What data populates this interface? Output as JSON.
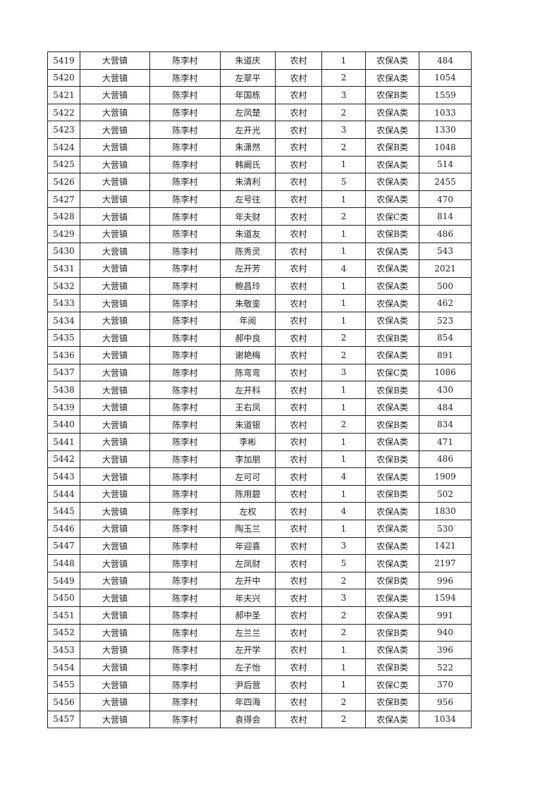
{
  "table": {
    "rows": [
      [
        "5419",
        "大营镇",
        "陈李村",
        "朱道庆",
        "农村",
        "1",
        "农保A类",
        "484"
      ],
      [
        "5420",
        "大营镇",
        "陈李村",
        "左翠平",
        "农村",
        "2",
        "农保A类",
        "1054"
      ],
      [
        "5421",
        "大营镇",
        "陈李村",
        "年国栋",
        "农村",
        "3",
        "农保B类",
        "1559"
      ],
      [
        "5422",
        "大营镇",
        "陈李村",
        "左凤楚",
        "农村",
        "2",
        "农保A类",
        "1033"
      ],
      [
        "5423",
        "大营镇",
        "陈李村",
        "左开光",
        "农村",
        "3",
        "农保A类",
        "1330"
      ],
      [
        "5424",
        "大营镇",
        "陈李村",
        "朱潇然",
        "农村",
        "2",
        "农保B类",
        "1048"
      ],
      [
        "5425",
        "大营镇",
        "陈李村",
        "韩阚氏",
        "农村",
        "1",
        "农保A类",
        "514"
      ],
      [
        "5426",
        "大营镇",
        "陈李村",
        "朱清利",
        "农村",
        "5",
        "农保A类",
        "2455"
      ],
      [
        "5427",
        "大营镇",
        "陈李村",
        "左号往",
        "农村",
        "1",
        "农保A类",
        "470"
      ],
      [
        "5428",
        "大营镇",
        "陈李村",
        "年夫财",
        "农村",
        "2",
        "农保C类",
        "814"
      ],
      [
        "5429",
        "大营镇",
        "陈李村",
        "朱道友",
        "农村",
        "1",
        "农保B类",
        "486"
      ],
      [
        "5430",
        "大营镇",
        "陈李村",
        "陈秀灵",
        "农村",
        "1",
        "农保A类",
        "543"
      ],
      [
        "5431",
        "大营镇",
        "陈李村",
        "左开芳",
        "农村",
        "4",
        "农保A类",
        "2021"
      ],
      [
        "5432",
        "大营镇",
        "陈李村",
        "鲍昌玲",
        "农村",
        "1",
        "农保A类",
        "500"
      ],
      [
        "5433",
        "大营镇",
        "陈李村",
        "朱敬銮",
        "农村",
        "1",
        "农保A类",
        "462"
      ],
      [
        "5434",
        "大营镇",
        "陈李村",
        "年阅",
        "农村",
        "1",
        "农保A类",
        "523"
      ],
      [
        "5435",
        "大营镇",
        "陈李村",
        "郝中良",
        "农村",
        "2",
        "农保B类",
        "854"
      ],
      [
        "5436",
        "大营镇",
        "陈李村",
        "谢艳梅",
        "农村",
        "2",
        "农保A类",
        "891"
      ],
      [
        "5437",
        "大营镇",
        "陈李村",
        "陈弯弯",
        "农村",
        "3",
        "农保C类",
        "1086"
      ],
      [
        "5438",
        "大营镇",
        "陈李村",
        "左开科",
        "农村",
        "1",
        "农保B类",
        "430"
      ],
      [
        "5439",
        "大营镇",
        "陈李村",
        "王右凤",
        "农村",
        "1",
        "农保A类",
        "484"
      ],
      [
        "5440",
        "大营镇",
        "陈李村",
        "朱道银",
        "农村",
        "2",
        "农保B类",
        "834"
      ],
      [
        "5441",
        "大营镇",
        "陈李村",
        "李彬",
        "农村",
        "1",
        "农保A类",
        "471"
      ],
      [
        "5442",
        "大营镇",
        "陈李村",
        "李加朋",
        "农村",
        "1",
        "农保B类",
        "486"
      ],
      [
        "5443",
        "大营镇",
        "陈李村",
        "左可可",
        "农村",
        "4",
        "农保A类",
        "1909"
      ],
      [
        "5444",
        "大营镇",
        "陈李村",
        "陈用碧",
        "农村",
        "1",
        "农保B类",
        "502"
      ],
      [
        "5445",
        "大营镇",
        "陈李村",
        "左权",
        "农村",
        "4",
        "农保A类",
        "1830"
      ],
      [
        "5446",
        "大营镇",
        "陈李村",
        "陶玉兰",
        "农村",
        "1",
        "农保A类",
        "530"
      ],
      [
        "5447",
        "大营镇",
        "陈李村",
        "年迎喜",
        "农村",
        "3",
        "农保A类",
        "1421"
      ],
      [
        "5448",
        "大营镇",
        "陈李村",
        "左凤财",
        "农村",
        "5",
        "农保A类",
        "2197"
      ],
      [
        "5449",
        "大营镇",
        "陈李村",
        "左开中",
        "农村",
        "2",
        "农保B类",
        "996"
      ],
      [
        "5450",
        "大营镇",
        "陈李村",
        "年夫兴",
        "农村",
        "3",
        "农保A类",
        "1594"
      ],
      [
        "5451",
        "大营镇",
        "陈李村",
        "郝中圣",
        "农村",
        "2",
        "农保A类",
        "991"
      ],
      [
        "5452",
        "大营镇",
        "陈李村",
        "左兰兰",
        "农村",
        "2",
        "农保B类",
        "940"
      ],
      [
        "5453",
        "大营镇",
        "陈李村",
        "左开学",
        "农村",
        "1",
        "农保A类",
        "396"
      ],
      [
        "5454",
        "大营镇",
        "陈李村",
        "左子怡",
        "农村",
        "1",
        "农保B类",
        "522"
      ],
      [
        "5455",
        "大营镇",
        "陈李村",
        "尹后营",
        "农村",
        "1",
        "农保C类",
        "370"
      ],
      [
        "5456",
        "大营镇",
        "陈李村",
        "年四海",
        "农村",
        "2",
        "农保B类",
        "956"
      ],
      [
        "5457",
        "大营镇",
        "陈李村",
        "袁得会",
        "农村",
        "2",
        "农保A类",
        "1034"
      ]
    ]
  }
}
